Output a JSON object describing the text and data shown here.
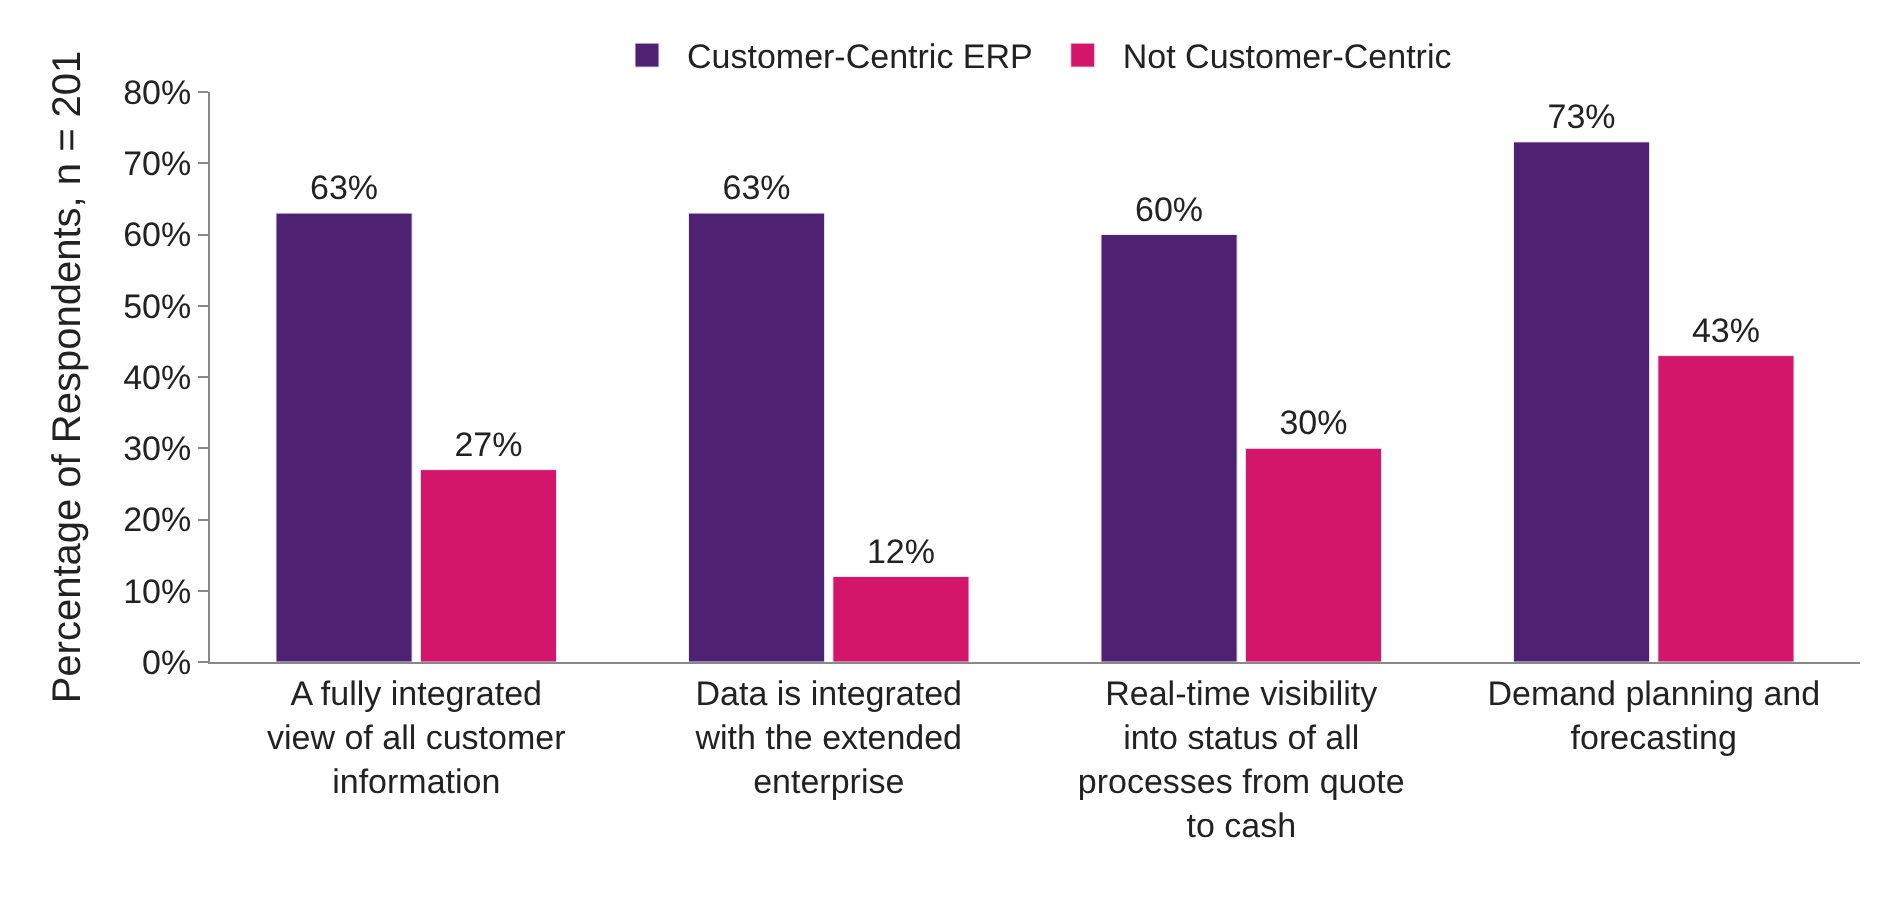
{
  "chart_data": {
    "type": "bar",
    "ylabel": "Percentage of Respondents, n = 201",
    "categories": [
      "A fully integrated view of all customer information",
      "Data is integrated with the extended enterprise",
      "Real-time visibility into status of all processes from quote to cash",
      "Demand planning and forecasting"
    ],
    "series": [
      {
        "name": "Customer-Centric ERP",
        "color": "#4f2173",
        "values": [
          63,
          63,
          60,
          73
        ],
        "value_labels": [
          "63%",
          "63%",
          "60%",
          "73%"
        ]
      },
      {
        "name": "Not Customer-Centric",
        "color": "#d4166b",
        "values": [
          27,
          12,
          30,
          43
        ],
        "value_labels": [
          "27%",
          "12%",
          "30%",
          "43%"
        ]
      }
    ],
    "ylim": [
      0,
      80
    ],
    "yticks": [
      {
        "value": 0,
        "label": "0%"
      },
      {
        "value": 10,
        "label": "10%"
      },
      {
        "value": 20,
        "label": "20%"
      },
      {
        "value": 30,
        "label": "30%"
      },
      {
        "value": 40,
        "label": "40%"
      },
      {
        "value": 50,
        "label": "50%"
      },
      {
        "value": 60,
        "label": "60%"
      },
      {
        "value": 70,
        "label": "70%"
      },
      {
        "value": 80,
        "label": "80%"
      }
    ],
    "legend": "top"
  }
}
